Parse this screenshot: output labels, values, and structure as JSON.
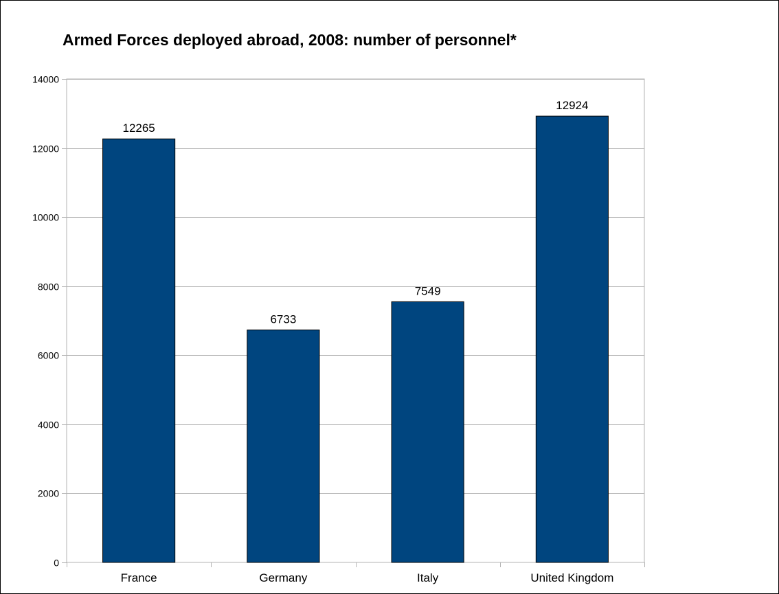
{
  "chart_data": {
    "type": "bar",
    "title": "Armed Forces deployed abroad, 2008: number of personnel*",
    "categories": [
      "France",
      "Germany",
      "Italy",
      "United Kingdom"
    ],
    "values": [
      12265,
      6733,
      7549,
      12924
    ],
    "data_labels": [
      "12265",
      "6733",
      "7549",
      "12924"
    ],
    "xlabel": "",
    "ylabel": "",
    "ylim": [
      0,
      14000
    ],
    "yticks": [
      0,
      2000,
      4000,
      6000,
      8000,
      10000,
      12000,
      14000
    ],
    "ytick_labels": [
      "0",
      "2000",
      "4000",
      "6000",
      "8000",
      "10000",
      "12000",
      "14000"
    ],
    "grid": true,
    "legend": "none",
    "bar_color": "#00457f",
    "bar_edge_color": "#000000",
    "grid_color": "#b3b3b3"
  }
}
